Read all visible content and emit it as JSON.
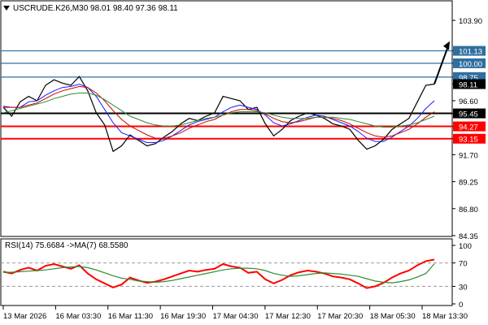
{
  "chart_data": [
    {
      "type": "candlestick",
      "title": "USCRUDE.K26,M30  98.01 98.40 97.36 98.11",
      "symbol_icon": "triangle-down-icon",
      "ylim": [
        84.35,
        105.6
      ],
      "y_ticks": [
        "103.90",
        "101.13",
        "100.00",
        "98.75",
        "98.11",
        "96.60",
        "95.45",
        "94.27",
        "93.15",
        "91.70",
        "89.25",
        "86.80",
        "84.35"
      ],
      "x_ticks": [
        "13 Mar 2026",
        "16 Mar 03:30",
        "16 Mar 11:30",
        "16 Mar 19:30",
        "17 Mar 04:30",
        "17 Mar 12:30",
        "17 Mar 20:30",
        "18 Mar 05:30",
        "18 Mar 13:30"
      ],
      "grid": false,
      "levels": [
        {
          "value": 101.13,
          "label": "101.13",
          "color": "#2f6f9f",
          "style": "thin"
        },
        {
          "value": 100.0,
          "label": "100.00",
          "color": "#2f6f9f",
          "style": "thin"
        },
        {
          "value": 98.75,
          "label": "98.75",
          "color": "#2f6f9f",
          "style": "thin"
        },
        {
          "value": 95.45,
          "label": "95.45",
          "color": "#000000",
          "style": "thick"
        },
        {
          "value": 94.27,
          "label": "94.27",
          "color": "#ff0000",
          "style": "thick"
        },
        {
          "value": 93.15,
          "label": "93.15",
          "color": "#ff0000",
          "style": "thick"
        }
      ],
      "current_price": {
        "value": 98.11,
        "label": "98.11"
      },
      "series": [
        {
          "name": "close",
          "color": "#000000",
          "values": [
            96.0,
            95.2,
            96.5,
            97.0,
            96.6,
            98.0,
            98.5,
            98.2,
            98.0,
            98.8,
            97.5,
            95.5,
            94.4,
            92.0,
            92.5,
            93.5,
            93.0,
            92.5,
            92.7,
            93.3,
            93.8,
            94.5,
            95.0,
            94.8,
            95.2,
            95.5,
            97.0,
            96.8,
            96.6,
            95.8,
            96.0,
            94.5,
            93.4,
            94.0,
            94.8,
            95.2,
            95.5,
            95.3,
            95.0,
            94.5,
            94.3,
            94.0,
            93.0,
            92.2,
            92.5,
            93.1,
            94.0,
            94.5,
            95.0,
            96.5,
            98.0,
            98.11
          ]
        },
        {
          "name": "ma-fast",
          "color": "#1a1aff",
          "values": [
            96.1,
            96.0,
            96.0,
            96.5,
            96.6,
            97.1,
            97.5,
            97.8,
            97.9,
            98.1,
            97.8,
            97.0,
            95.8,
            94.6,
            93.7,
            93.4,
            93.1,
            92.8,
            92.8,
            93.0,
            93.4,
            93.9,
            94.4,
            94.7,
            94.9,
            95.1,
            95.6,
            96.0,
            96.2,
            96.0,
            95.8,
            95.3,
            94.6,
            94.3,
            94.5,
            94.8,
            95.1,
            95.3,
            95.2,
            94.9,
            94.6,
            94.3,
            93.8,
            93.2,
            92.9,
            92.9,
            93.3,
            93.8,
            94.3,
            95.0,
            95.9,
            96.6
          ]
        },
        {
          "name": "ma-medium",
          "color": "#cc0000",
          "values": [
            96.0,
            96.0,
            96.0,
            96.2,
            96.4,
            96.8,
            97.2,
            97.5,
            97.7,
            97.9,
            97.8,
            97.3,
            96.6,
            95.7,
            94.9,
            94.3,
            93.9,
            93.5,
            93.2,
            93.2,
            93.4,
            93.7,
            94.1,
            94.4,
            94.7,
            94.9,
            95.3,
            95.6,
            95.8,
            95.8,
            95.7,
            95.4,
            95.0,
            94.7,
            94.6,
            94.7,
            94.9,
            95.1,
            95.1,
            95.0,
            94.8,
            94.5,
            94.1,
            93.7,
            93.4,
            93.3,
            93.4,
            93.7,
            94.0,
            94.5,
            95.1,
            95.6
          ]
        },
        {
          "name": "ma-slow",
          "color": "#2e8b2e",
          "values": [
            95.5,
            95.7,
            95.9,
            96.1,
            96.3,
            96.5,
            96.8,
            97.0,
            97.2,
            97.3,
            97.3,
            97.1,
            96.7,
            96.2,
            95.7,
            95.2,
            94.9,
            94.6,
            94.4,
            94.3,
            94.3,
            94.4,
            94.6,
            94.8,
            95.0,
            95.1,
            95.3,
            95.5,
            95.6,
            95.6,
            95.6,
            95.5,
            95.3,
            95.1,
            95.0,
            95.0,
            95.0,
            95.1,
            95.1,
            95.1,
            95.0,
            94.9,
            94.7,
            94.5,
            94.3,
            94.2,
            94.2,
            94.3,
            94.4,
            94.6,
            94.9,
            95.2
          ]
        }
      ],
      "projection": {
        "from": 98.11,
        "to": 102.0,
        "color": "#000000",
        "icon": "arrow-up-icon"
      }
    },
    {
      "type": "line",
      "title": "RSI(14) 75.6684  ->MA(7) 68.5580",
      "ylim": [
        0,
        100
      ],
      "y_ticks": [
        "100",
        "70",
        "30",
        "0"
      ],
      "levels": [
        70,
        30
      ],
      "series": [
        {
          "name": "RSI(14)",
          "color": "#ff0000",
          "values": [
            55,
            52,
            58,
            62,
            57,
            65,
            68,
            64,
            60,
            66,
            52,
            42,
            35,
            28,
            33,
            45,
            40,
            36,
            38,
            42,
            47,
            52,
            57,
            55,
            58,
            60,
            68,
            64,
            62,
            53,
            55,
            42,
            35,
            41,
            49,
            54,
            57,
            55,
            52,
            47,
            45,
            42,
            35,
            27,
            30,
            36,
            45,
            52,
            57,
            66,
            73,
            75.67
          ]
        },
        {
          "name": "MA(7)",
          "color": "#2e8b2e",
          "values": [
            54,
            54,
            55,
            56,
            57,
            58,
            60,
            62,
            63,
            64,
            62,
            58,
            53,
            48,
            44,
            42,
            39,
            38,
            37,
            38,
            40,
            43,
            46,
            49,
            52,
            55,
            58,
            60,
            61,
            61,
            60,
            57,
            52,
            49,
            47,
            48,
            50,
            52,
            53,
            52,
            51,
            49,
            47,
            43,
            39,
            37,
            36,
            38,
            41,
            46,
            52,
            68.56
          ]
        }
      ]
    }
  ]
}
